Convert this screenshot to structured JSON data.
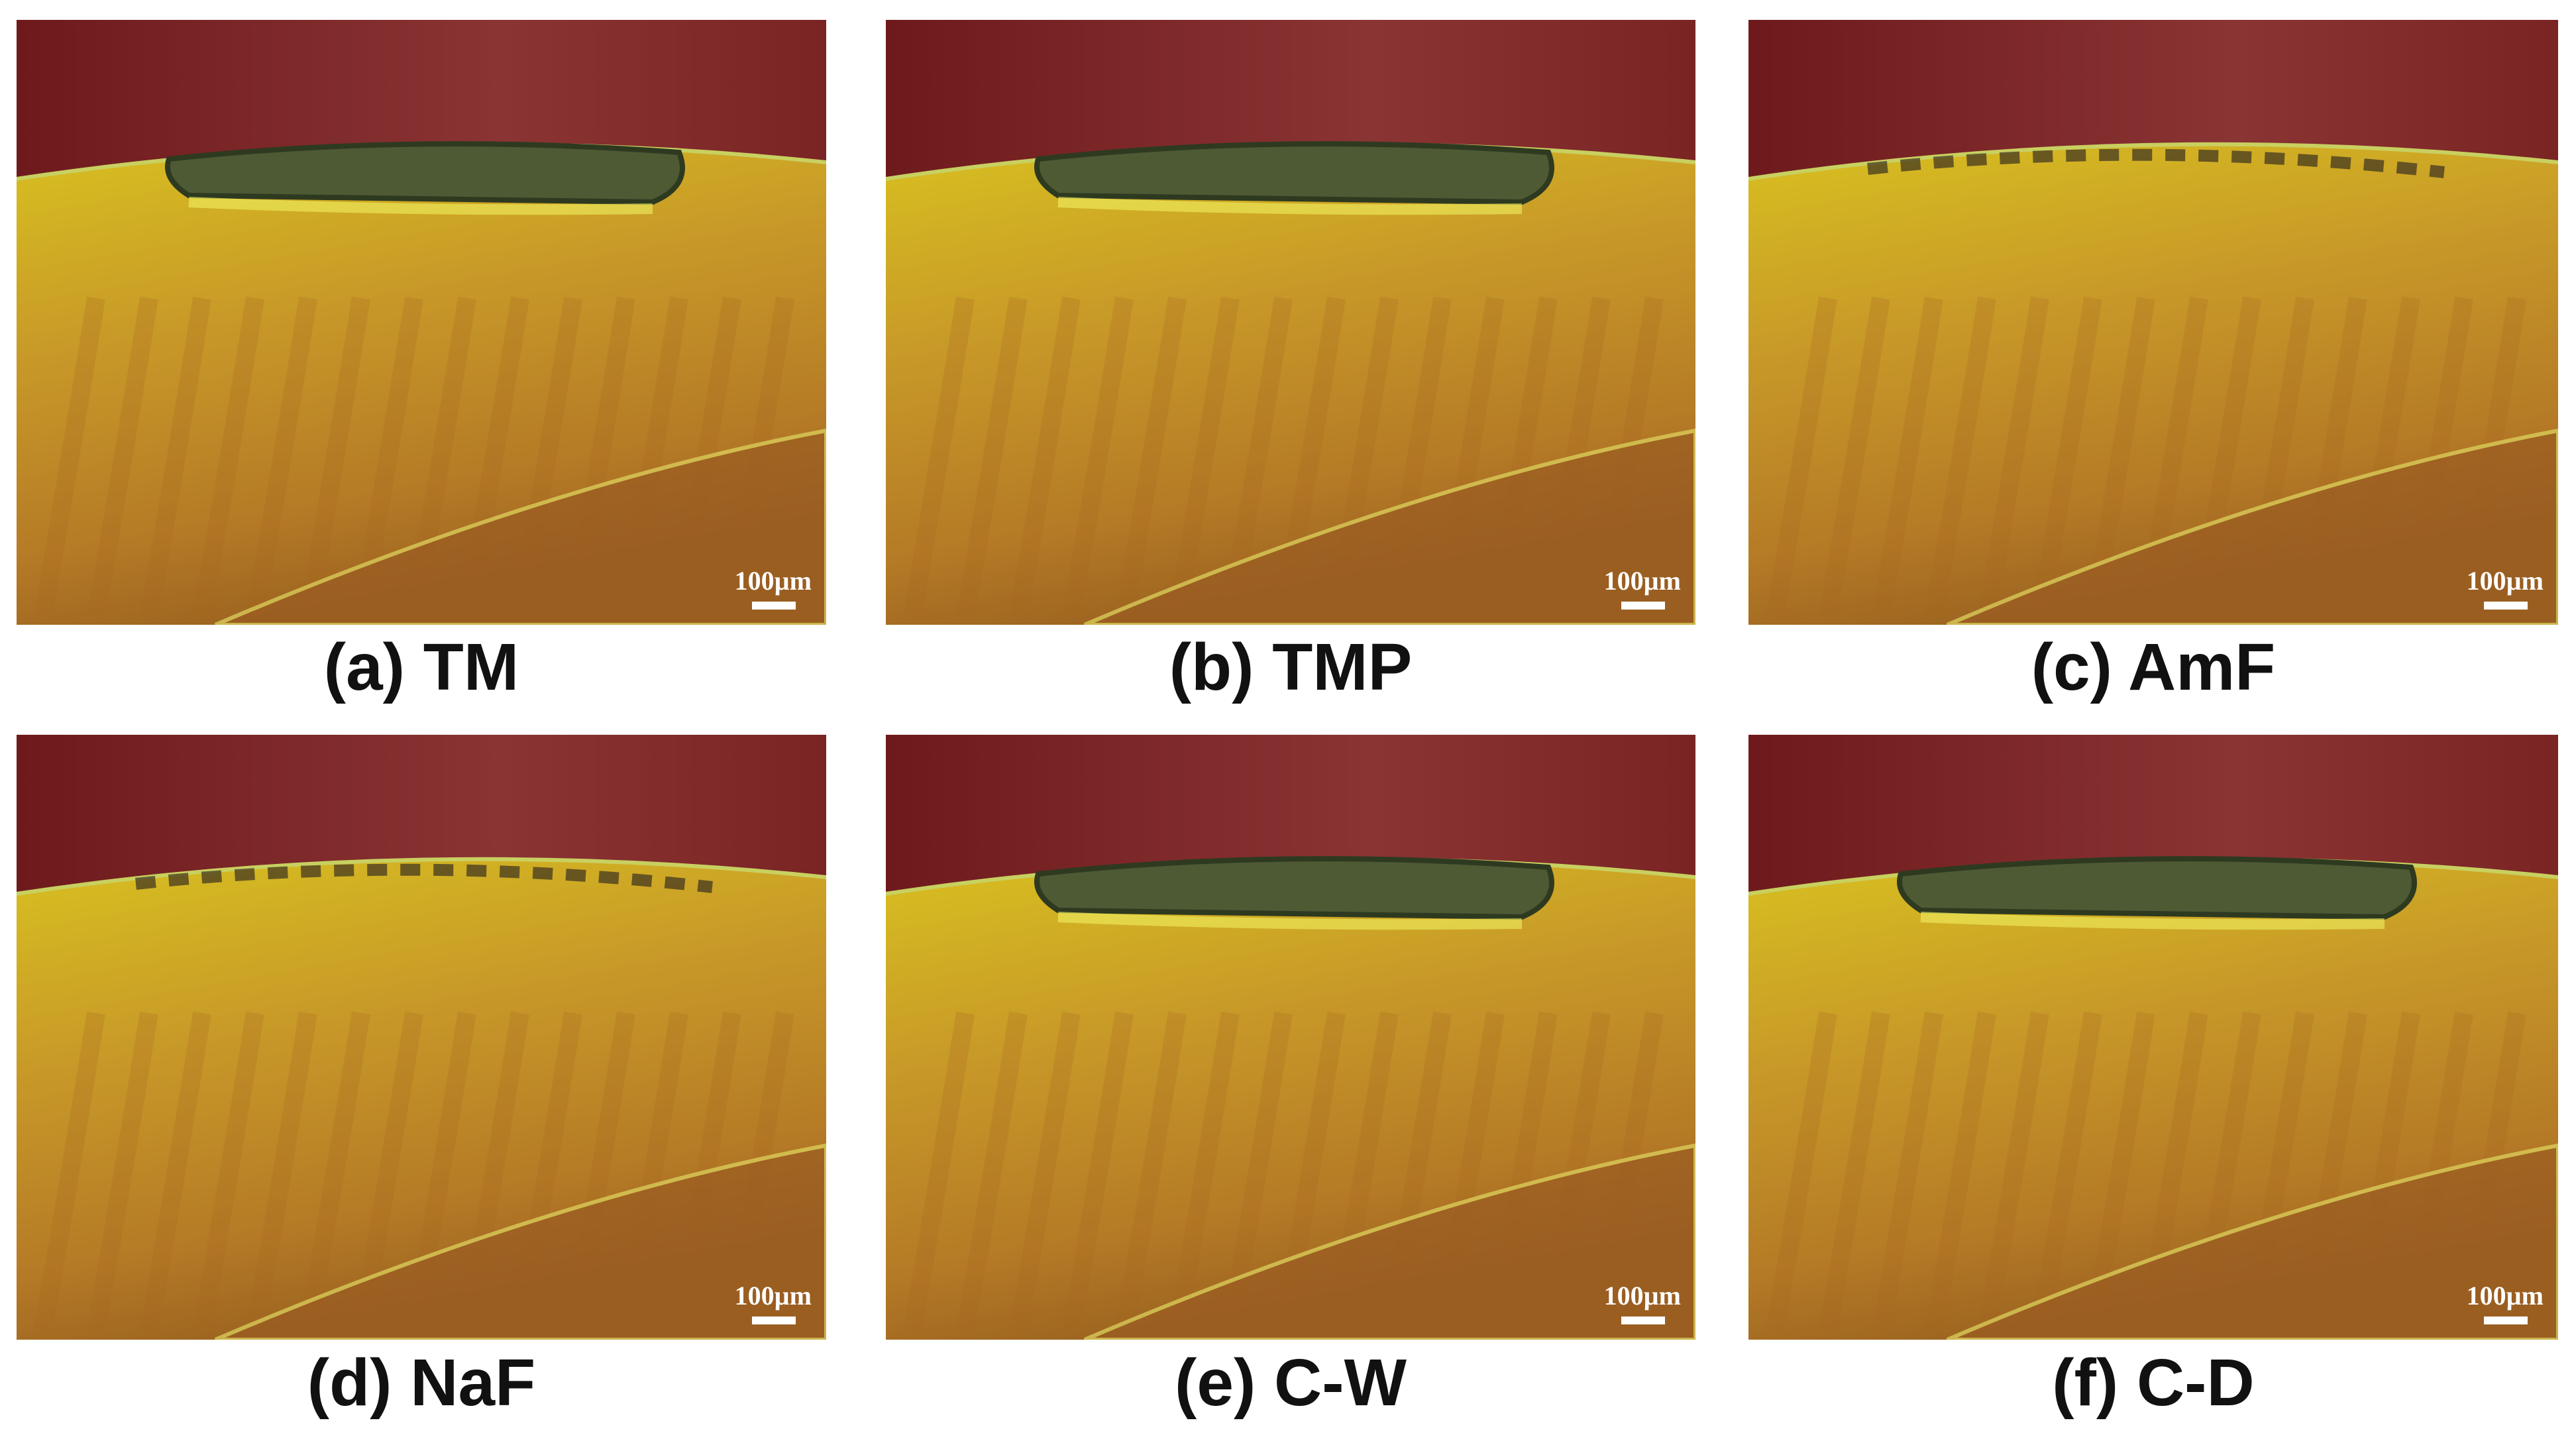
{
  "panels": [
    {
      "label": "(a) TM",
      "scale_bar": "100µm"
    },
    {
      "label": "(b) TMP",
      "scale_bar": "100µm"
    },
    {
      "label": "(c) AmF",
      "scale_bar": "100µm"
    },
    {
      "label": "(d) NaF",
      "scale_bar": "100µm"
    },
    {
      "label": "(e) C-W",
      "scale_bar": "100µm"
    },
    {
      "label": "(f) C-D",
      "scale_bar": "100µm"
    }
  ]
}
